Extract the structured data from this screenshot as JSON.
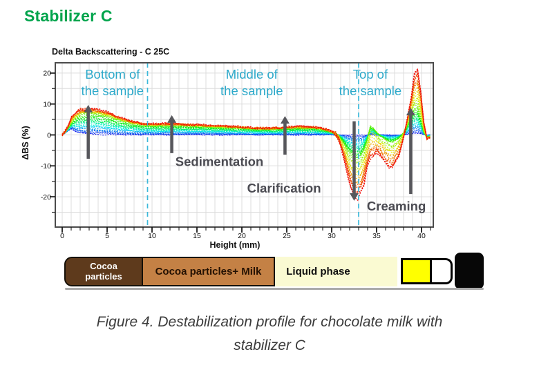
{
  "page": {
    "heading": "Stabilizer C"
  },
  "colors": {
    "heading_green": "#00A44C",
    "annotation_cyan": "#2CA9CA",
    "guide_line_cyan": "#3BB9DA",
    "arrow_gray": "#57575C",
    "process_label_gray": "#4B4B52",
    "caption_gray": "#3C3C3C",
    "grid_gray": "#DCDCDC",
    "axis_dark": "#4B4B4B"
  },
  "chart_data": {
    "type": "line",
    "title": "Delta Backscattering - C 25C",
    "xlabel": "Height (mm)",
    "ylabel": "ΔBS (%)",
    "xlim": [
      -0.8,
      41.3
    ],
    "ylim": [
      -29.8,
      23.3
    ],
    "x_major_ticks": [
      0,
      5,
      10,
      15,
      20,
      25,
      30,
      35,
      40
    ],
    "x_minor_step": 1,
    "y_major_ticks": [
      20,
      10,
      0,
      -10,
      -20
    ],
    "y_minor_step": 5,
    "grid": true,
    "legend": "none",
    "palette": "scan time order, rainbow blue (first scan) to red (last scan)",
    "num_scans": 36,
    "region_boundaries_mm": [
      9.5,
      33.0
    ],
    "region_labels": [
      {
        "text_lines": [
          "Bottom of",
          "the sample"
        ],
        "x_mm": 5.6
      },
      {
        "text_lines": [
          "Middle of",
          "the sample"
        ],
        "x_mm": 21.1
      },
      {
        "text_lines": [
          "Top of",
          "the sample"
        ],
        "x_mm": 34.3
      }
    ],
    "process_labels": [
      {
        "text": "Sedimentation",
        "x_mm": 17.5,
        "y_pct": -10.0
      },
      {
        "text": "Clarification",
        "x_mm": 24.7,
        "y_pct": -18.6
      },
      {
        "text": "Creaming",
        "x_mm": 37.2,
        "y_pct": -24.4
      }
    ],
    "arrows": [
      {
        "x_mm": 2.9,
        "from_pct": -7.7,
        "to_pct": 9.7
      },
      {
        "x_mm": 12.2,
        "from_pct": -5.9,
        "to_pct": 6.4
      },
      {
        "x_mm": 24.8,
        "from_pct": -6.4,
        "to_pct": 6.1
      },
      {
        "x_mm": 32.5,
        "from_pct": 4.4,
        "to_pct": -21.3
      },
      {
        "x_mm": 38.8,
        "from_pct": -19.1,
        "to_pct": 8.8
      }
    ],
    "scan_keyframes": {
      "comment": "delta backscattering %, scans interpolated first->mid->last",
      "mid_time_fraction": 0.6,
      "x_mm": [
        0,
        0.5,
        1,
        1.5,
        2,
        3,
        4,
        5,
        6,
        7,
        8,
        9,
        10,
        12,
        14,
        16,
        18,
        20,
        22,
        24,
        26,
        28,
        29,
        30,
        30.5,
        31,
        31.5,
        32,
        32.5,
        33,
        33.5,
        34,
        34.3,
        34.7,
        35,
        35.5,
        36,
        36.5,
        37,
        37.5,
        38,
        38.4,
        38.8,
        39.2,
        39.5,
        39.8,
        40.1,
        40.4,
        40.7,
        41,
        41.4
      ],
      "first_scan": [
        0,
        1,
        2.2,
        1,
        0.5,
        0.3,
        0.2,
        0.1,
        0.1,
        0,
        0,
        0,
        0,
        0,
        0,
        0,
        0,
        0,
        0,
        0,
        0,
        0,
        0,
        0,
        0,
        0,
        0,
        0,
        0,
        0,
        0,
        0,
        0,
        0,
        0,
        0,
        0,
        0,
        0,
        0,
        0,
        0.2,
        0.3,
        0.4,
        0.5,
        0.4,
        0.2,
        0,
        0,
        0,
        0
      ],
      "mid_scan": [
        0,
        1.5,
        4,
        5.5,
        6.5,
        7,
        6.8,
        6.1,
        5.2,
        4.4,
        3.7,
        3.3,
        3.1,
        3.2,
        3,
        2.8,
        2.5,
        2.2,
        1.9,
        2,
        2.3,
        2.2,
        1.8,
        1,
        0.4,
        -1,
        -3.5,
        -6,
        -7.5,
        -8,
        -6,
        -1,
        3,
        2.2,
        0.8,
        -0.5,
        -1.5,
        -2.5,
        -2,
        -1,
        0.5,
        3,
        6,
        8.5,
        9.2,
        7,
        2.5,
        -0.5,
        -1,
        -0.5,
        0
      ],
      "last_scan": [
        0,
        2,
        5.5,
        7.5,
        8.3,
        8.6,
        8.3,
        7.4,
        6.2,
        5.1,
        4.2,
        3.7,
        3.5,
        3.7,
        3.4,
        3.2,
        2.9,
        2.6,
        2.2,
        2.3,
        2.7,
        2.6,
        2.1,
        1.2,
        0,
        -3,
        -9,
        -16,
        -19.5,
        -20.5,
        -17,
        -10,
        -8,
        -6.5,
        -6,
        -7,
        -9,
        -11.5,
        -10,
        -7,
        -1,
        5,
        12,
        20,
        22.5,
        18,
        8,
        0,
        -2,
        -1,
        0
      ]
    }
  },
  "phase_bar": {
    "segments": [
      {
        "label": "Cocoa particles",
        "color": "#5E3A1C",
        "text_color": "#FFFFFF"
      },
      {
        "label": "Cocoa particles+ Milk",
        "color": "#C48145",
        "text_color": "#241102"
      },
      {
        "label": "Liquid phase",
        "color": "#FAFAD2",
        "text_color": "#0E0E0E"
      }
    ],
    "tube": {
      "serum_color": "#FFFF00",
      "air_color": "#FFFFFF",
      "cap_color": "#070707"
    }
  },
  "caption": {
    "line1": "Figure 4. Destabilization profile for chocolate milk with",
    "line2": "stabilizer C"
  }
}
